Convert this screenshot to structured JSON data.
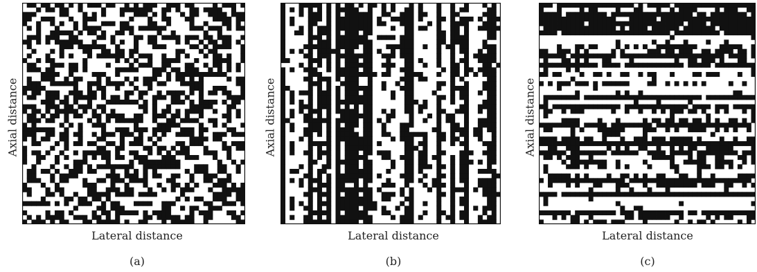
{
  "panels": [
    {
      "id": "a",
      "caption": "(a)",
      "xlabel": "Lateral distance",
      "ylabel": "Axial distance",
      "pattern": "random",
      "seed": 11,
      "density": 0.5
    },
    {
      "id": "b",
      "caption": "(b)",
      "xlabel": "Lateral distance",
      "ylabel": "Axial distance",
      "pattern": "vertical-stripes",
      "seed": 23,
      "density": 0.5
    },
    {
      "id": "c",
      "caption": "(c)",
      "xlabel": "Lateral distance",
      "ylabel": "Axial distance",
      "pattern": "horizontal-stripes",
      "seed": 37,
      "density": 0.5
    }
  ],
  "colors": {
    "filled": "#111111",
    "empty": "#ffffff",
    "frame": "#111111"
  }
}
